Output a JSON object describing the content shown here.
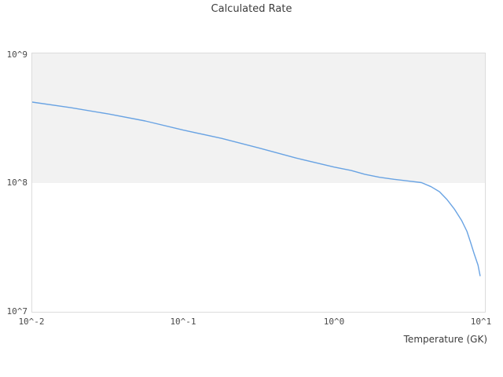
{
  "title": "Calculated Rate",
  "colors": {
    "line": "#69a3e3",
    "band": "#f2f2f2",
    "plot_border": "#dcdcdc",
    "text": "#3c3c3c",
    "tick_text": "#4a4a4a",
    "background": "#ffffff"
  },
  "chart_data": {
    "type": "line",
    "title": "Calculated Rate",
    "xlabel": "Temperature (GK)",
    "ylabel": "",
    "xscale": "log",
    "yscale": "log",
    "xlim": [
      0.01,
      10
    ],
    "ylim": [
      10000000.0,
      1000000000.0
    ],
    "x_ticks": [
      "10^-2",
      "10^-1",
      "10^0",
      "10^1"
    ],
    "x_tick_values": [
      0.01,
      0.1,
      1,
      10
    ],
    "y_ticks": [
      "10^7",
      "10^8",
      "10^9"
    ],
    "y_tick_values": [
      10000000.0,
      100000000.0,
      1000000000.0
    ],
    "grid": false,
    "legend": false,
    "shaded_band": {
      "ymin": 100000000.0,
      "ymax": 1000000000.0,
      "color": "#f2f2f2"
    },
    "series": [
      {
        "name": "calculated-rate",
        "color": "#69a3e3",
        "x": [
          0.01,
          0.018,
          0.032,
          0.056,
          0.1,
          0.18,
          0.32,
          0.56,
          1.0,
          1.3,
          1.6,
          2.0,
          2.5,
          3.1,
          3.8,
          4.4,
          5.0,
          5.6,
          6.3,
          7.0,
          7.6,
          8.0,
          8.5,
          9.0,
          9.3
        ],
        "y": [
          420000000.0,
          380000000.0,
          340000000.0,
          300000000.0,
          255000000.0,
          220000000.0,
          185000000.0,
          155000000.0,
          132000000.0,
          124000000.0,
          116000000.0,
          110000000.0,
          106000000.0,
          103000000.0,
          100000000.0,
          93000000.0,
          85000000.0,
          74000000.0,
          62000000.0,
          51000000.0,
          42000000.0,
          35000000.0,
          28000000.0,
          23000000.0,
          19000000.0
        ]
      }
    ]
  }
}
